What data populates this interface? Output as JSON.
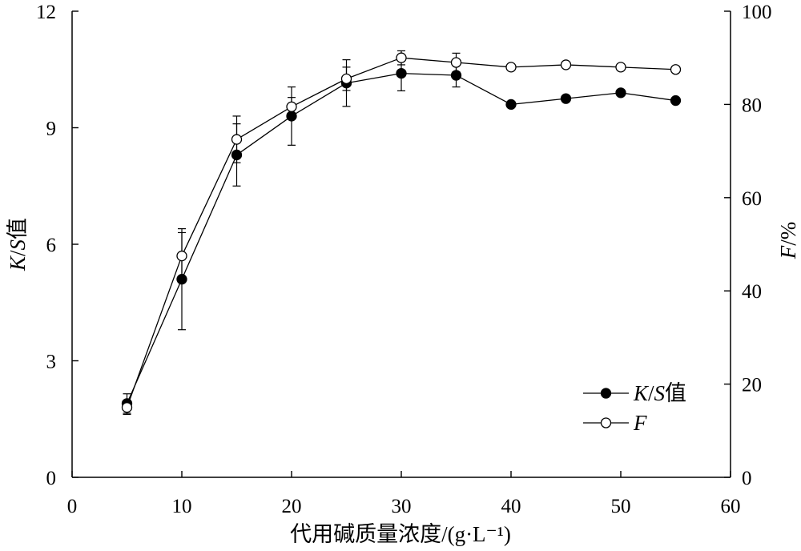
{
  "chart_data": {
    "type": "line",
    "xlabel": "代用碱质量浓度/(g·L⁻¹)",
    "ylabel_left": "K/S值",
    "ylabel_right": "F/%",
    "xlim": [
      0,
      60
    ],
    "ylim_left": [
      0,
      12
    ],
    "ylim_right": [
      0,
      100
    ],
    "x_ticks": [
      0,
      10,
      20,
      30,
      40,
      50,
      60
    ],
    "y_ticks_left": [
      0,
      3,
      6,
      9,
      12
    ],
    "y_ticks_right": [
      0,
      20,
      40,
      60,
      80,
      100
    ],
    "grid": false,
    "legend_position": "bottom-right",
    "x": [
      5,
      10,
      15,
      20,
      25,
      30,
      35,
      40,
      45,
      50,
      55
    ],
    "series": [
      {
        "name": "K/S值",
        "axis": "left",
        "marker": "filled-circle",
        "values": [
          1.9,
          5.1,
          8.3,
          9.3,
          10.15,
          10.4,
          10.35,
          9.6,
          9.75,
          9.9,
          9.7
        ],
        "error": [
          0.25,
          1.3,
          0.8,
          0.75,
          0.6,
          0.45,
          0.3,
          0,
          0,
          0,
          0
        ]
      },
      {
        "name": "F",
        "axis": "right",
        "marker": "open-circle",
        "values": [
          15,
          47.5,
          72.5,
          79.5,
          85.5,
          90,
          89,
          88,
          88.5,
          88,
          87.5
        ],
        "error": [
          1.5,
          5,
          5,
          2,
          2.5,
          1.5,
          2,
          0,
          0,
          0,
          0
        ]
      }
    ]
  },
  "colors": {
    "line": "#000000",
    "background": "#ffffff"
  }
}
